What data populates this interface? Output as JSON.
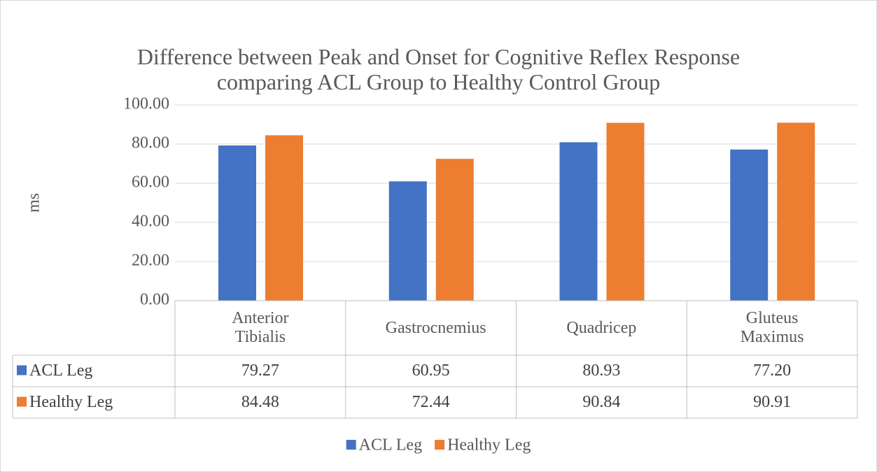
{
  "chart_data": {
    "type": "bar",
    "title": "Difference between Peak and Onset for Cognitive Reflex Response comparing ACL Group to Healthy Control Group",
    "y_label": "ms",
    "categories": [
      "Anterior Tibialis",
      "Gastrocnemius",
      "Quadricep",
      "Gluteus Maximus"
    ],
    "series": [
      {
        "name": "ACL Leg",
        "color": "#4472c4",
        "values": [
          79.27,
          60.95,
          80.93,
          77.2
        ],
        "value_labels": [
          "79.27",
          "60.95",
          "80.93",
          "77.20"
        ]
      },
      {
        "name": "Healthy Leg",
        "color": "#ed7d31",
        "values": [
          84.48,
          72.44,
          90.84,
          90.91
        ],
        "value_labels": [
          "84.48",
          "72.44",
          "90.84",
          "90.91"
        ]
      }
    ],
    "ylim": [
      0,
      100
    ],
    "yticks": [
      {
        "value": 0,
        "label": "0.00"
      },
      {
        "value": 20,
        "label": "20.00"
      },
      {
        "value": 40,
        "label": "40.00"
      },
      {
        "value": 60,
        "label": "60.00"
      },
      {
        "value": 80,
        "label": "80.00"
      },
      {
        "value": 100,
        "label": "100.00"
      }
    ],
    "grid": true,
    "legend": "bottom"
  }
}
